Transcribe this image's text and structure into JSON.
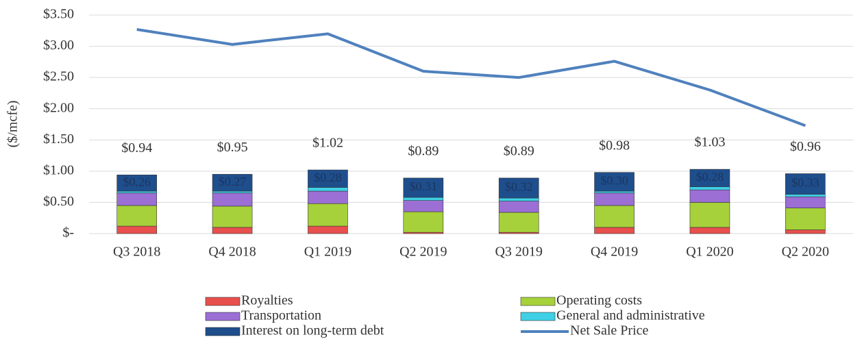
{
  "chart_data": {
    "type": "stacked-bar-line",
    "y_label": "($/mcfe)",
    "categories": [
      "Q3 2018",
      "Q4 2018",
      "Q1 2019",
      "Q2 2019",
      "Q3 2019",
      "Q4 2019",
      "Q1 2020",
      "Q2 2020"
    ],
    "series": [
      {
        "name": "Royalties",
        "color": "#e8504d",
        "values": [
          0.12,
          0.1,
          0.12,
          0.02,
          0.02,
          0.1,
          0.1,
          0.06
        ]
      },
      {
        "name": "Operating costs",
        "color": "#a6d13a",
        "values": [
          0.33,
          0.34,
          0.36,
          0.33,
          0.32,
          0.35,
          0.4,
          0.35
        ]
      },
      {
        "name": "Transportation",
        "color": "#9b6fd4",
        "values": [
          0.2,
          0.21,
          0.2,
          0.18,
          0.18,
          0.2,
          0.2,
          0.18
        ]
      },
      {
        "name": "General and administrative",
        "color": "#3fd0e6",
        "values": [
          0.03,
          0.03,
          0.06,
          0.05,
          0.05,
          0.03,
          0.05,
          0.04
        ]
      },
      {
        "name": "Interest on long-term debt",
        "color": "#1f4e8c",
        "values": [
          0.26,
          0.27,
          0.28,
          0.31,
          0.32,
          0.3,
          0.28,
          0.33
        ],
        "value_labels": [
          "$0.26",
          "$0.27",
          "$0.28",
          "$0.31",
          "$0.32",
          "$0.30",
          "$0.28",
          "$0.33"
        ]
      },
      {
        "name": "Net Sale Price",
        "type": "line",
        "color": "#4f81bd",
        "values": [
          3.27,
          3.03,
          3.2,
          2.6,
          2.5,
          2.76,
          2.3,
          1.73
        ]
      }
    ],
    "totals": {
      "values": [
        0.94,
        0.95,
        1.02,
        0.89,
        0.89,
        0.98,
        1.03,
        0.96
      ],
      "value_labels": [
        "$0.94",
        "$0.95",
        "$1.02",
        "$0.89",
        "$0.89",
        "$0.98",
        "$1.03",
        "$0.96"
      ]
    },
    "ylim": [
      0,
      3.5
    ],
    "yticks": [
      {
        "value": 0,
        "label": "$-"
      },
      {
        "value": 0.5,
        "label": "$0.50"
      },
      {
        "value": 1,
        "label": "$1.00"
      },
      {
        "value": 1.5,
        "label": "$1.50"
      },
      {
        "value": 2,
        "label": "$2.00"
      },
      {
        "value": 2.5,
        "label": "$2.50"
      },
      {
        "value": 3,
        "label": "$3.00"
      },
      {
        "value": 3.5,
        "label": "$3.50"
      }
    ],
    "grid": true
  }
}
